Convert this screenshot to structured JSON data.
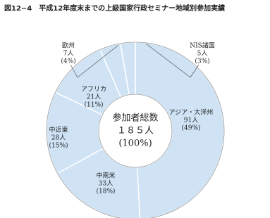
{
  "chart_data": {
    "type": "donut",
    "title": "図12−4　平成12年度末までの上級国家行政セミナー地域別参加実績",
    "categories": [
      "アジア・大洋州",
      "中南米",
      "中近東",
      "アフリカ",
      "欧州",
      "NIS諸国"
    ],
    "series": [
      {
        "color": "#cfe3f5",
        "values": [
          91,
          33,
          28,
          21,
          7,
          5
        ],
        "value_labels": [
          "91人",
          "33人",
          "28人",
          "21人",
          "7人",
          "5人"
        ],
        "percents": [
          49,
          18,
          15,
          11,
          4,
          3
        ],
        "percent_labels": [
          "(49%)",
          "(18%)",
          "(15%)",
          "(11%)",
          "(4%)",
          "(3%)"
        ]
      }
    ],
    "center": {
      "title": "参加者総数",
      "total": 185,
      "total_label": "１８５人",
      "percent_label": "(100%)"
    }
  }
}
